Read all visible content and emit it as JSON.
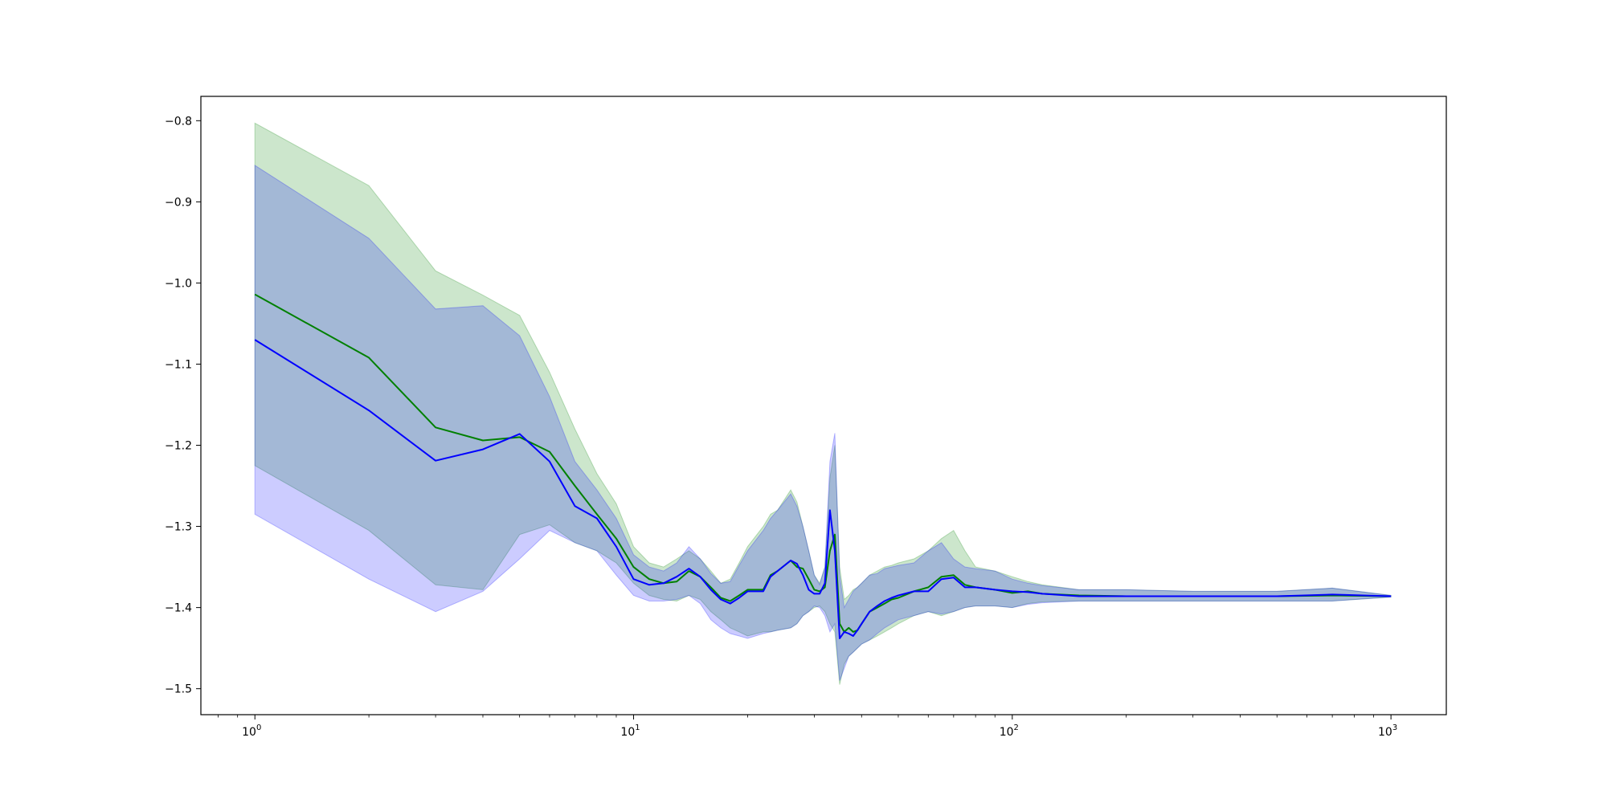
{
  "chart_data": {
    "type": "line",
    "title": "",
    "xlabel": "",
    "ylabel": "",
    "xscale": "log",
    "xlim": [
      0.72,
      1400
    ],
    "ylim": [
      -1.532,
      -0.77
    ],
    "grid": false,
    "colors": {
      "green_line": "#008000",
      "blue_line": "#0000ff",
      "green_band": "#008000",
      "blue_band": "#0000ff",
      "axes": "#000000"
    },
    "x_ticks": [
      {
        "value": 1,
        "base": "10",
        "exp": "0"
      },
      {
        "value": 10,
        "base": "10",
        "exp": "1"
      },
      {
        "value": 100,
        "base": "10",
        "exp": "2"
      },
      {
        "value": 1000,
        "base": "10",
        "exp": "3"
      }
    ],
    "y_ticks": [
      {
        "value": -0.8,
        "label": "−0.8"
      },
      {
        "value": -0.9,
        "label": "−0.9"
      },
      {
        "value": -1.0,
        "label": "−1.0"
      },
      {
        "value": -1.1,
        "label": "−1.1"
      },
      {
        "value": -1.2,
        "label": "−1.2"
      },
      {
        "value": -1.3,
        "label": "−1.3"
      },
      {
        "value": -1.4,
        "label": "−1.4"
      },
      {
        "value": -1.5,
        "label": "−1.5"
      }
    ],
    "series": [
      {
        "color": "#008000",
        "x": [
          1,
          2,
          3,
          4,
          5,
          6,
          7,
          8,
          9,
          10,
          11,
          12,
          13,
          14,
          15,
          16,
          17,
          18,
          19,
          20,
          22,
          23,
          24,
          26,
          27,
          28,
          29,
          30,
          31,
          32,
          33,
          34,
          35,
          36,
          37,
          38,
          39,
          40,
          42,
          44,
          46,
          48,
          50,
          55,
          60,
          65,
          70,
          75,
          80,
          90,
          100,
          110,
          120,
          150,
          200,
          300,
          500,
          700,
          1000
        ],
        "y": [
          -1.014,
          -1.092,
          -1.178,
          -1.194,
          -1.19,
          -1.208,
          -1.25,
          -1.285,
          -1.315,
          -1.35,
          -1.365,
          -1.37,
          -1.368,
          -1.355,
          -1.362,
          -1.375,
          -1.388,
          -1.392,
          -1.385,
          -1.378,
          -1.378,
          -1.36,
          -1.355,
          -1.342,
          -1.35,
          -1.352,
          -1.365,
          -1.378,
          -1.38,
          -1.375,
          -1.33,
          -1.31,
          -1.42,
          -1.43,
          -1.425,
          -1.43,
          -1.428,
          -1.42,
          -1.405,
          -1.4,
          -1.395,
          -1.39,
          -1.388,
          -1.38,
          -1.375,
          -1.362,
          -1.36,
          -1.372,
          -1.375,
          -1.378,
          -1.382,
          -1.38,
          -1.383,
          -1.385,
          -1.386,
          -1.386,
          -1.386,
          -1.385,
          -1.386
        ],
        "upper": [
          -0.803,
          -0.88,
          -0.985,
          -1.015,
          -1.04,
          -1.11,
          -1.18,
          -1.235,
          -1.272,
          -1.325,
          -1.345,
          -1.35,
          -1.34,
          -1.33,
          -1.34,
          -1.355,
          -1.37,
          -1.365,
          -1.345,
          -1.325,
          -1.3,
          -1.285,
          -1.28,
          -1.255,
          -1.27,
          -1.3,
          -1.33,
          -1.36,
          -1.37,
          -1.35,
          -1.24,
          -1.2,
          -1.35,
          -1.39,
          -1.385,
          -1.378,
          -1.375,
          -1.37,
          -1.36,
          -1.355,
          -1.35,
          -1.348,
          -1.345,
          -1.34,
          -1.33,
          -1.315,
          -1.305,
          -1.33,
          -1.35,
          -1.355,
          -1.362,
          -1.368,
          -1.372,
          -1.378,
          -1.378,
          -1.38,
          -1.38,
          -1.376,
          -1.385
        ],
        "lower": [
          -1.225,
          -1.305,
          -1.372,
          -1.378,
          -1.31,
          -1.298,
          -1.32,
          -1.33,
          -1.345,
          -1.37,
          -1.385,
          -1.39,
          -1.392,
          -1.385,
          -1.39,
          -1.405,
          -1.415,
          -1.425,
          -1.43,
          -1.435,
          -1.43,
          -1.43,
          -1.428,
          -1.425,
          -1.42,
          -1.41,
          -1.405,
          -1.4,
          -1.398,
          -1.405,
          -1.42,
          -1.43,
          -1.495,
          -1.47,
          -1.46,
          -1.455,
          -1.45,
          -1.445,
          -1.44,
          -1.435,
          -1.43,
          -1.425,
          -1.42,
          -1.41,
          -1.405,
          -1.41,
          -1.405,
          -1.4,
          -1.398,
          -1.398,
          -1.4,
          -1.395,
          -1.393,
          -1.392,
          -1.392,
          -1.392,
          -1.392,
          -1.392,
          -1.387
        ]
      },
      {
        "color": "#0000ff",
        "x": [
          1,
          2,
          3,
          4,
          5,
          6,
          7,
          8,
          9,
          10,
          11,
          12,
          13,
          14,
          15,
          16,
          17,
          18,
          19,
          20,
          22,
          23,
          24,
          26,
          27,
          28,
          29,
          30,
          31,
          32,
          33,
          34,
          35,
          36,
          37,
          38,
          39,
          40,
          42,
          44,
          46,
          48,
          50,
          55,
          60,
          65,
          70,
          75,
          80,
          90,
          100,
          110,
          120,
          150,
          200,
          300,
          500,
          700,
          1000
        ],
        "y": [
          -1.07,
          -1.157,
          -1.219,
          -1.205,
          -1.186,
          -1.22,
          -1.275,
          -1.29,
          -1.325,
          -1.365,
          -1.372,
          -1.37,
          -1.362,
          -1.352,
          -1.362,
          -1.378,
          -1.39,
          -1.395,
          -1.388,
          -1.38,
          -1.38,
          -1.362,
          -1.355,
          -1.342,
          -1.346,
          -1.36,
          -1.378,
          -1.383,
          -1.383,
          -1.37,
          -1.28,
          -1.33,
          -1.438,
          -1.43,
          -1.432,
          -1.435,
          -1.428,
          -1.42,
          -1.405,
          -1.398,
          -1.392,
          -1.388,
          -1.385,
          -1.38,
          -1.38,
          -1.365,
          -1.363,
          -1.375,
          -1.375,
          -1.378,
          -1.38,
          -1.381,
          -1.383,
          -1.386,
          -1.386,
          -1.386,
          -1.386,
          -1.384,
          -1.386
        ],
        "upper": [
          -0.855,
          -0.945,
          -1.032,
          -1.028,
          -1.065,
          -1.14,
          -1.22,
          -1.255,
          -1.29,
          -1.335,
          -1.35,
          -1.355,
          -1.345,
          -1.325,
          -1.34,
          -1.358,
          -1.37,
          -1.368,
          -1.348,
          -1.33,
          -1.305,
          -1.29,
          -1.28,
          -1.26,
          -1.275,
          -1.3,
          -1.33,
          -1.36,
          -1.372,
          -1.35,
          -1.22,
          -1.185,
          -1.36,
          -1.4,
          -1.39,
          -1.38,
          -1.375,
          -1.37,
          -1.36,
          -1.358,
          -1.352,
          -1.35,
          -1.348,
          -1.345,
          -1.33,
          -1.32,
          -1.34,
          -1.35,
          -1.352,
          -1.355,
          -1.365,
          -1.37,
          -1.373,
          -1.378,
          -1.378,
          -1.38,
          -1.38,
          -1.376,
          -1.385
        ],
        "lower": [
          -1.285,
          -1.365,
          -1.405,
          -1.38,
          -1.34,
          -1.305,
          -1.32,
          -1.33,
          -1.36,
          -1.385,
          -1.392,
          -1.392,
          -1.39,
          -1.385,
          -1.395,
          -1.415,
          -1.425,
          -1.432,
          -1.435,
          -1.438,
          -1.432,
          -1.43,
          -1.428,
          -1.425,
          -1.42,
          -1.41,
          -1.405,
          -1.398,
          -1.4,
          -1.41,
          -1.43,
          -1.42,
          -1.49,
          -1.475,
          -1.46,
          -1.455,
          -1.45,
          -1.445,
          -1.44,
          -1.432,
          -1.425,
          -1.42,
          -1.415,
          -1.41,
          -1.405,
          -1.408,
          -1.405,
          -1.4,
          -1.398,
          -1.398,
          -1.4,
          -1.396,
          -1.394,
          -1.392,
          -1.392,
          -1.392,
          -1.392,
          -1.392,
          -1.387
        ]
      }
    ]
  }
}
